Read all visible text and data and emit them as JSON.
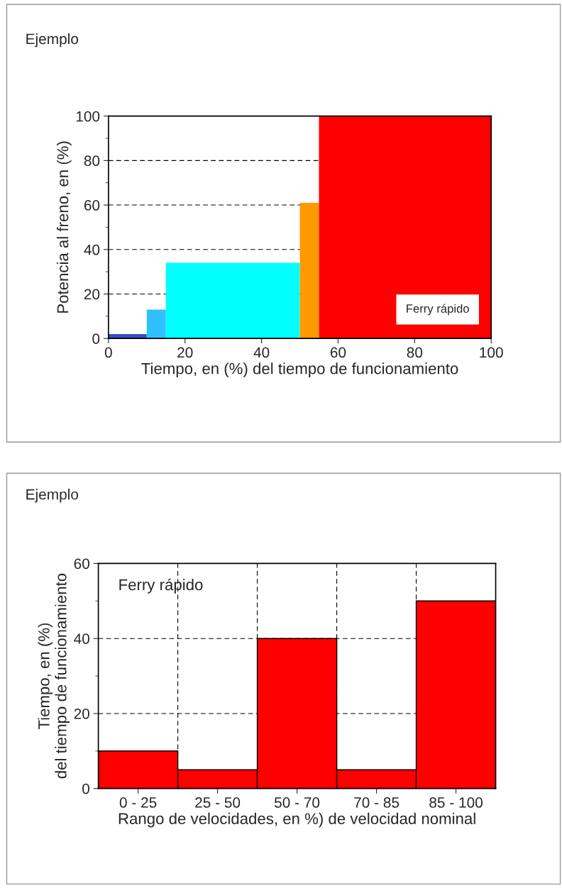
{
  "chart_data": [
    {
      "type": "histogram",
      "title": "Ejemplo",
      "xlabel": "Tiempo, en (%) del tiempo de funcionamiento",
      "ylabel": "Potencia al freno, en (%)",
      "bins": [
        0,
        10,
        15,
        50,
        55,
        100
      ],
      "values": [
        2,
        13,
        34,
        61,
        100
      ],
      "colors": [
        "#3050c0",
        "#30c0ff",
        "#00ffff",
        "#ff9900",
        "#ff0000"
      ],
      "xlim": [
        0,
        100
      ],
      "xticks": [
        0,
        20,
        40,
        60,
        80,
        100
      ],
      "ylim": [
        0,
        100
      ],
      "yticks": [
        0,
        20,
        40,
        60,
        80,
        100
      ],
      "grid": "y",
      "annotations": [
        "Ferry rápido"
      ]
    },
    {
      "type": "bar",
      "title": "Ejemplo",
      "xlabel": "Rango de velocidades, en %) de velocidad nominal",
      "ylabel": "Tiempo, en (%)\ndel tiempo de funcionamiento",
      "categories": [
        "0 - 25",
        "25 - 50",
        "50 - 70",
        "70 - 85",
        "85 - 100"
      ],
      "values": [
        10,
        5,
        40,
        5,
        50
      ],
      "color": "#ff0000",
      "ylim": [
        0,
        60
      ],
      "yticks": [
        0,
        20,
        40,
        60
      ],
      "grid": true,
      "annotations": [
        "Ferry rápido"
      ]
    }
  ]
}
